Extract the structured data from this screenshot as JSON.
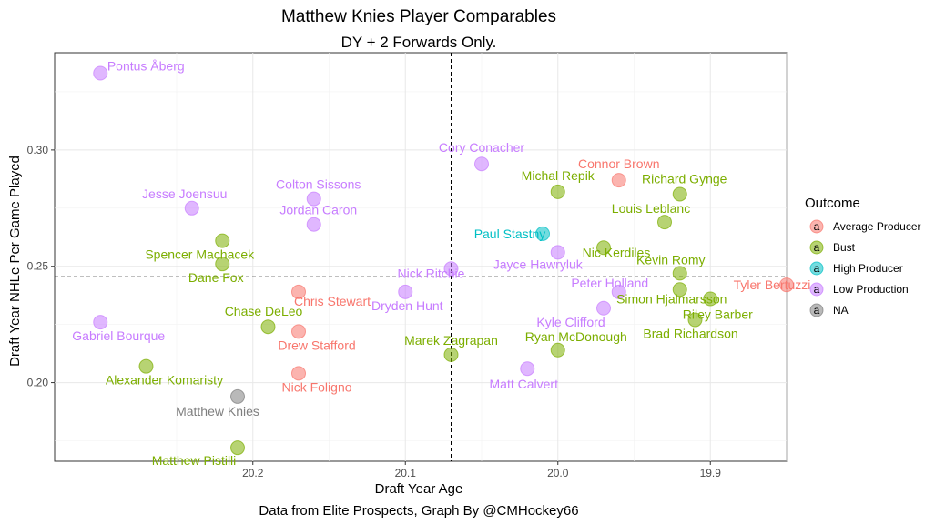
{
  "chart_data": {
    "type": "scatter",
    "title": "Matthew Knies Player Comparables",
    "subtitle": "DY  + 2 Forwards Only.",
    "xlabel": "Draft Year Age",
    "ylabel": "Draft Year NHLe Per Game Played",
    "caption": "Data from Elite Prospects, Graph By @CMHockey66",
    "x_reversed": true,
    "xlim": [
      20.33,
      19.85
    ],
    "ylim": [
      0.1662,
      0.3418
    ],
    "x_ticks": [
      20.2,
      20.1,
      20.0,
      19.9
    ],
    "x_tick_labels": [
      "20.2",
      "20.1",
      "20.0",
      "19.9"
    ],
    "y_ticks": [
      0.2,
      0.25,
      0.3
    ],
    "y_tick_labels": [
      "0.20",
      "0.25",
      "0.30"
    ],
    "ref_lines": {
      "x": 20.07,
      "y": 0.2455
    },
    "grid": true,
    "legend": {
      "title": "Outcome",
      "position": "right",
      "items": [
        {
          "label": "Average Producer",
          "color": "#F8766D"
        },
        {
          "label": "Bust",
          "color": "#7CAE00"
        },
        {
          "label": "High Producer",
          "color": "#00BFC4"
        },
        {
          "label": "Low Production",
          "color": "#C77CFF"
        },
        {
          "label": "NA",
          "color": "#7F7F7F"
        }
      ]
    },
    "points": [
      {
        "name": "Pontus Åberg",
        "x": 20.3,
        "y": 0.333,
        "outcome": "Low Production"
      },
      {
        "name": "Cory Conacher",
        "x": 20.05,
        "y": 0.294,
        "outcome": "Low Production"
      },
      {
        "name": "Connor Brown",
        "x": 19.96,
        "y": 0.287,
        "outcome": "Average Producer"
      },
      {
        "name": "Michal Repik",
        "x": 20.0,
        "y": 0.282,
        "outcome": "Bust"
      },
      {
        "name": "Richard Gynge",
        "x": 19.92,
        "y": 0.281,
        "outcome": "Bust"
      },
      {
        "name": "Colton Sissons",
        "x": 20.16,
        "y": 0.279,
        "outcome": "Low Production"
      },
      {
        "name": "Jesse Joensuu",
        "x": 20.24,
        "y": 0.275,
        "outcome": "Low Production"
      },
      {
        "name": "Jordan Caron",
        "x": 20.16,
        "y": 0.268,
        "outcome": "Low Production"
      },
      {
        "name": "Paul Stastny",
        "x": 20.01,
        "y": 0.264,
        "outcome": "High Producer"
      },
      {
        "name": "Louis Leblanc",
        "x": 19.93,
        "y": 0.269,
        "outcome": "Bust"
      },
      {
        "name": "Spencer Machacek",
        "x": 20.22,
        "y": 0.261,
        "outcome": "Bust"
      },
      {
        "name": "Jayce Hawryluk",
        "x": 20.0,
        "y": 0.256,
        "outcome": "Low Production"
      },
      {
        "name": "Nic Kerdiles",
        "x": 19.97,
        "y": 0.258,
        "outcome": "Bust"
      },
      {
        "name": "Dane Fox",
        "x": 20.22,
        "y": 0.251,
        "outcome": "Bust"
      },
      {
        "name": "Nick Ritchie",
        "x": 20.07,
        "y": 0.249,
        "outcome": "Low Production"
      },
      {
        "name": "Kevin Romy",
        "x": 19.92,
        "y": 0.247,
        "outcome": "Bust"
      },
      {
        "name": "Tyler Bertuzzi",
        "x": 19.85,
        "y": 0.242,
        "outcome": "Average Producer"
      },
      {
        "name": "Peter Holland",
        "x": 19.96,
        "y": 0.239,
        "outcome": "Low Production"
      },
      {
        "name": "Simon Hjalmarsson",
        "x": 19.92,
        "y": 0.24,
        "outcome": "Bust"
      },
      {
        "name": "Dryden Hunt",
        "x": 20.1,
        "y": 0.239,
        "outcome": "Low Production"
      },
      {
        "name": "Chris Stewart",
        "x": 20.17,
        "y": 0.239,
        "outcome": "Average Producer"
      },
      {
        "name": "Riley Barber",
        "x": 19.9,
        "y": 0.236,
        "outcome": "Bust"
      },
      {
        "name": "Kyle Clifford",
        "x": 19.97,
        "y": 0.232,
        "outcome": "Low Production"
      },
      {
        "name": "Brad Richardson",
        "x": 19.91,
        "y": 0.227,
        "outcome": "Bust"
      },
      {
        "name": "Chase DeLeo",
        "x": 20.19,
        "y": 0.224,
        "outcome": "Bust"
      },
      {
        "name": "Gabriel Bourque",
        "x": 20.3,
        "y": 0.226,
        "outcome": "Low Production"
      },
      {
        "name": "Drew Stafford",
        "x": 20.17,
        "y": 0.222,
        "outcome": "Average Producer"
      },
      {
        "name": "Ryan McDonough",
        "x": 20.0,
        "y": 0.214,
        "outcome": "Bust"
      },
      {
        "name": "Marek Zagrapan",
        "x": 20.07,
        "y": 0.212,
        "outcome": "Bust"
      },
      {
        "name": "Alexander Komaristy",
        "x": 20.27,
        "y": 0.207,
        "outcome": "Bust"
      },
      {
        "name": "Matt Calvert",
        "x": 20.02,
        "y": 0.206,
        "outcome": "Low Production"
      },
      {
        "name": "Nick Foligno",
        "x": 20.17,
        "y": 0.204,
        "outcome": "Average Producer"
      },
      {
        "name": "Matthew Knies",
        "x": 20.21,
        "y": 0.194,
        "outcome": "NA"
      },
      {
        "name": "Matthew Pistilli",
        "x": 20.21,
        "y": 0.172,
        "outcome": "Bust"
      }
    ]
  }
}
